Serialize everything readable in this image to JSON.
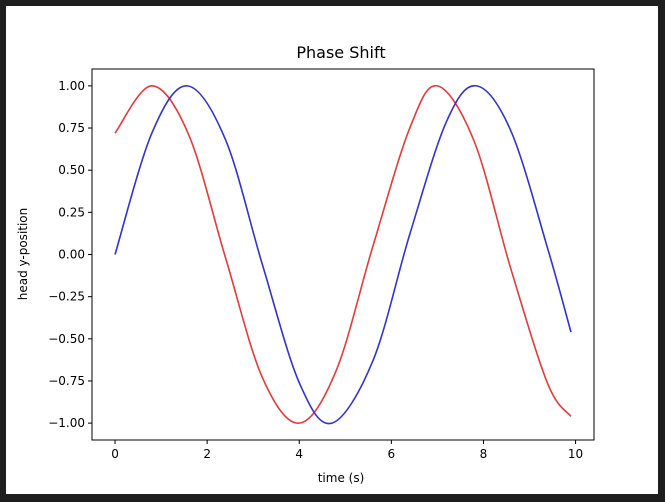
{
  "chart_data": {
    "type": "line",
    "title": "Phase Shift",
    "xlabel": "time (s)",
    "ylabel": "head y-position",
    "xlim": [
      -0.5,
      10.4
    ],
    "ylim": [
      -1.1,
      1.1
    ],
    "grid": false,
    "x_ticks": [
      0,
      2,
      4,
      6,
      8,
      10
    ],
    "x_tick_labels": [
      "0",
      "2",
      "4",
      "6",
      "8",
      "10"
    ],
    "y_ticks": [
      1.0,
      0.75,
      0.5,
      0.25,
      0.0,
      -0.25,
      -0.5,
      -0.75,
      -1.0
    ],
    "y_tick_labels": [
      "1.00",
      "0.75",
      "0.50",
      "0.25",
      "0.00",
      "−0.25",
      "−0.50",
      "−0.75",
      "−1.00"
    ],
    "series": [
      {
        "color": "#e03c3c",
        "x": [
          0.0,
          0.8,
          1.6,
          2.4,
          3.2,
          4.0,
          4.8,
          5.6,
          6.4,
          7.0,
          7.8,
          8.6,
          9.4,
          9.9
        ],
        "values": [
          0.72,
          1.0,
          0.71,
          -0.02,
          -0.73,
          -1.0,
          -0.69,
          0.05,
          0.75,
          1.0,
          0.67,
          -0.09,
          -0.77,
          -0.96
        ]
      },
      {
        "color": "#3333cc",
        "x": [
          0.0,
          0.8,
          1.57,
          2.4,
          3.2,
          4.0,
          4.71,
          5.6,
          6.4,
          7.2,
          7.85,
          8.6,
          9.4,
          9.9
        ],
        "values": [
          0.0,
          0.72,
          1.0,
          0.68,
          -0.06,
          -0.76,
          -1.0,
          -0.63,
          0.12,
          0.79,
          1.0,
          0.73,
          0.03,
          -0.46
        ]
      }
    ]
  }
}
